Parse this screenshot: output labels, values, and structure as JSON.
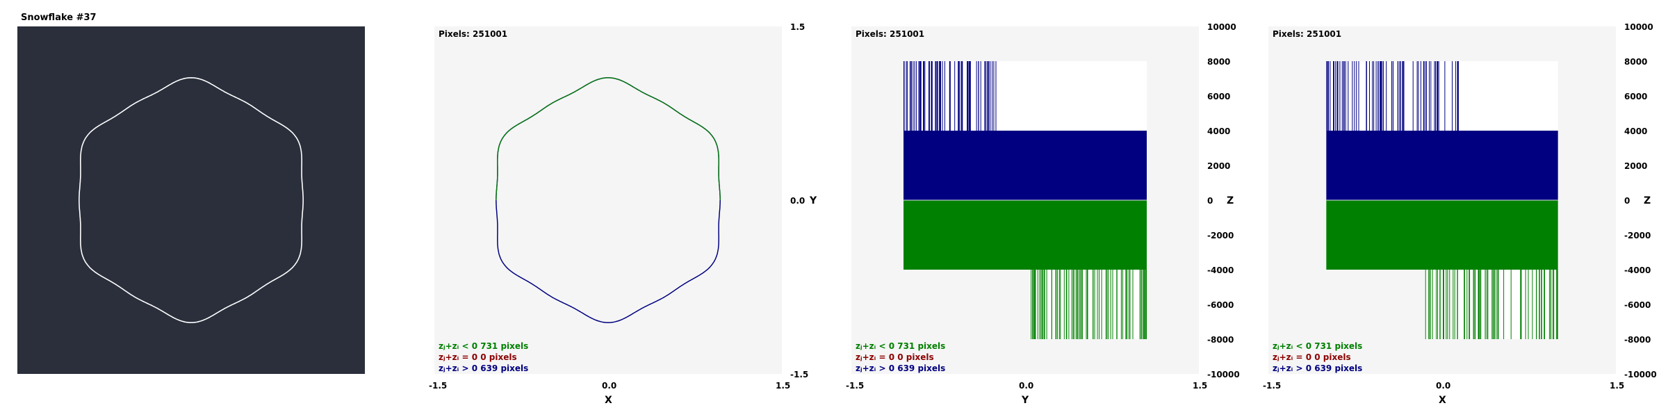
{
  "colors": {
    "snow_bg": "#2a2f3b",
    "plot_bg": "#f5f5f5",
    "navy": "#000080",
    "green": "#008000",
    "dark_red": "#8b0000",
    "white_curve": "#ffffff"
  },
  "panels": [
    {
      "title": "Snowflake #37"
    },
    {
      "pixels": "Pixels: 251001",
      "xticks": [
        "-1.5",
        "0.0",
        "1.5"
      ],
      "yticks_right": [
        "1.5",
        "0.0",
        "-1.5"
      ],
      "xlabel": "X",
      "ylabel": "Y",
      "legend": [
        {
          "label": "zⱼ+zᵢ < 0  731 pixels",
          "color": "green"
        },
        {
          "label": "zⱼ+zᵢ = 0  0 pixels",
          "color": "darkred"
        },
        {
          "label": "zⱼ+zᵢ > 0  639 pixels",
          "color": "navy"
        }
      ]
    },
    {
      "pixels": "Pixels: 251001",
      "xticks": [
        "-1.5",
        "0.0",
        "1.5"
      ],
      "yticks_right": [
        "10000",
        "8000",
        "6000",
        "4000",
        "2000",
        "0",
        "-2000",
        "-4000",
        "-6000",
        "-8000",
        "-10000"
      ],
      "xlabel": "Y",
      "ylabel": "Z",
      "legend": [
        {
          "label": "zⱼ+zᵢ < 0  731 pixels",
          "color": "green"
        },
        {
          "label": "zⱼ+zᵢ = 0  0 pixels",
          "color": "darkred"
        },
        {
          "label": "zⱼ+zᵢ > 0  639 pixels",
          "color": "navy"
        }
      ]
    },
    {
      "pixels": "Pixels: 251001",
      "xticks": [
        "-1.5",
        "0.0",
        "1.5"
      ],
      "yticks_right": [
        "10000",
        "8000",
        "6000",
        "4000",
        "2000",
        "0",
        "-2000",
        "-4000",
        "-6000",
        "-8000",
        "-10000"
      ],
      "xlabel": "X",
      "ylabel": "Z",
      "legend": [
        {
          "label": "zⱼ+zᵢ < 0  731 pixels",
          "color": "green"
        },
        {
          "label": "zⱼ+zᵢ = 0  0 pixels",
          "color": "darkred"
        },
        {
          "label": "zⱼ+zᵢ > 0  639 pixels",
          "color": "navy"
        }
      ]
    }
  ],
  "chart_data": [
    {
      "type": "scatter",
      "title": "",
      "xlabel": "X",
      "ylabel": "Y",
      "xlim": [
        -1.5,
        1.5
      ],
      "ylim": [
        -1.5,
        1.5
      ],
      "shape": "closed scalloped loop, radius about 1.0, 6 lobes"
    },
    {
      "type": "bar",
      "title": "",
      "xlabel": "Y",
      "ylabel": "Z",
      "xlim": [
        -1.5,
        1.5
      ],
      "ylim": [
        -10000,
        10000
      ],
      "series": [
        {
          "name": "zⱼ+zᵢ > 0",
          "block": {
            "x": [
              -1.05,
              1.05
            ],
            "z": [
              0,
              4000
            ]
          },
          "spikes_up_to": 8000,
          "spikes_x": [
            -1.05,
            -0.25
          ]
        },
        {
          "name": "zⱼ+zᵢ < 0",
          "block": {
            "x": [
              -1.05,
              1.05
            ],
            "z": [
              -4000,
              0
            ]
          },
          "spikes_down_to": -8000,
          "spikes_x": [
            0.05,
            1.05
          ]
        }
      ]
    },
    {
      "type": "bar",
      "title": "",
      "xlabel": "X",
      "ylabel": "Z",
      "xlim": [
        -1.5,
        1.5
      ],
      "ylim": [
        -10000,
        10000
      ],
      "series": [
        {
          "name": "zⱼ+zᵢ > 0",
          "block": {
            "x": [
              -1.0,
              1.0
            ],
            "z": [
              0,
              4000
            ]
          },
          "spikes_up_to": 8000,
          "spikes_x": [
            -1.0,
            0.15
          ]
        },
        {
          "name": "zⱼ+zᵢ < 0",
          "block": {
            "x": [
              -1.0,
              1.0
            ],
            "z": [
              -4000,
              0
            ]
          },
          "spikes_down_to": -8000,
          "spikes_x": [
            -0.15,
            1.0
          ]
        }
      ]
    }
  ]
}
